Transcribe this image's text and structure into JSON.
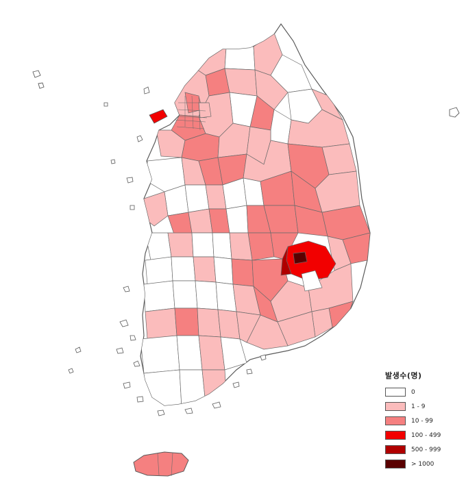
{
  "legend": {
    "title": "발생수(명)",
    "items": [
      {
        "label": "0",
        "color": "#ffffff"
      },
      {
        "label": "1 - 9",
        "color": "#fbbcbc"
      },
      {
        "label": "10 - 99",
        "color": "#f58080"
      },
      {
        "label": "100 - 499",
        "color": "#f20000"
      },
      {
        "label": "500 - 999",
        "color": "#b00000"
      },
      {
        "label": "> 1000",
        "color": "#5a0000"
      }
    ]
  },
  "colors": {
    "border": "#5a5a5a",
    "none": "#ffffff",
    "low": "#fbbcbc",
    "mid": "#f58080",
    "high": "#f20000",
    "very_high": "#b00000",
    "max": "#5a0000"
  }
}
